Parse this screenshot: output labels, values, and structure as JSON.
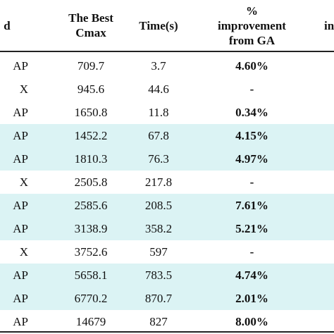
{
  "header": {
    "method": "d",
    "best_cmax_line1": "The Best",
    "best_cmax_line2": "Cmax",
    "time": "Time(s)",
    "improvement_line1": "%",
    "improvement_line2": "improvement",
    "improvement_line3": "from GA",
    "last": "in"
  },
  "rows": [
    {
      "method": "AP",
      "cmax": "709.7",
      "time": "3.7",
      "improvement": "4.60%",
      "highlight": false
    },
    {
      "method": "X",
      "cmax": "945.6",
      "time": "44.6",
      "improvement": "-",
      "highlight": false
    },
    {
      "method": "AP",
      "cmax": "1650.8",
      "time": "11.8",
      "improvement": "0.34%",
      "highlight": false
    },
    {
      "method": "AP",
      "cmax": "1452.2",
      "time": "67.8",
      "improvement": "4.15%",
      "highlight": true
    },
    {
      "method": "AP",
      "cmax": "1810.3",
      "time": "76.3",
      "improvement": "4.97%",
      "highlight": true
    },
    {
      "method": "X",
      "cmax": "2505.8",
      "time": "217.8",
      "improvement": "-",
      "highlight": false
    },
    {
      "method": "AP",
      "cmax": "2585.6",
      "time": "208.5",
      "improvement": "7.61%",
      "highlight": true
    },
    {
      "method": "AP",
      "cmax": "3138.9",
      "time": "358.2",
      "improvement": "5.21%",
      "highlight": true
    },
    {
      "method": "X",
      "cmax": "3752.6",
      "time": "597",
      "improvement": "-",
      "highlight": false
    },
    {
      "method": "AP",
      "cmax": "5658.1",
      "time": "783.5",
      "improvement": "4.74%",
      "highlight": true
    },
    {
      "method": "AP",
      "cmax": "6770.2",
      "time": "870.7",
      "improvement": "2.01%",
      "highlight": true
    },
    {
      "method": "AP",
      "cmax": "14679",
      "time": "827",
      "improvement": "8.00%",
      "highlight": false
    }
  ],
  "colors": {
    "highlight_row": "#dbf3f4",
    "rule": "#222222"
  }
}
